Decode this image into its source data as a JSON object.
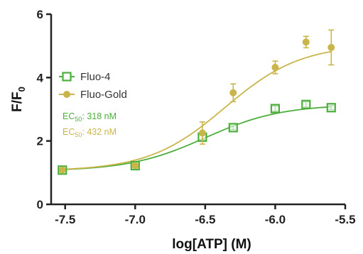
{
  "chart_data": {
    "type": "scatter",
    "xlabel": "log[ATP] (M)",
    "ylabel": "F/F",
    "ylabel_subscript": "0",
    "xlim": [
      -7.6,
      -5.5
    ],
    "ylim": [
      0,
      6
    ],
    "x_ticks": [
      -7.5,
      -7.0,
      -6.5,
      -6.0,
      -5.5
    ],
    "x_tick_labels": [
      "-7.5",
      "-7.0",
      "-6.5",
      "-6.0",
      "-5.5"
    ],
    "y_ticks": [
      0,
      2,
      4,
      6
    ],
    "y_tick_labels": [
      "0",
      "2",
      "4",
      "6"
    ],
    "grid": false,
    "legend_position": "upper-left",
    "series": [
      {
        "name": "Fluo-4",
        "color": "#4caf3c",
        "marker": "open-square",
        "x": [
          -7.52,
          -7.0,
          -6.52,
          -6.3,
          -6.0,
          -5.78,
          -5.6
        ],
        "y": [
          1.08,
          1.22,
          2.12,
          2.42,
          3.02,
          3.15,
          3.05
        ],
        "err": [
          0.05,
          0.05,
          0.08,
          0.06,
          0.08,
          0.08,
          0.06
        ],
        "fit": {
          "bottom": 1.05,
          "top": 3.15,
          "log_ec50": -6.5,
          "hill": 1.6
        }
      },
      {
        "name": "Fluo-Gold",
        "color": "#c9b54a",
        "marker": "filled-circle",
        "x": [
          -7.52,
          -7.0,
          -6.52,
          -6.3,
          -6.0,
          -5.78,
          -5.6
        ],
        "y": [
          1.08,
          1.22,
          2.25,
          3.52,
          4.32,
          5.12,
          4.95
        ],
        "err": [
          0.05,
          0.06,
          0.35,
          0.28,
          0.2,
          0.18,
          0.55
        ],
        "fit": {
          "bottom": 1.05,
          "top": 5.05,
          "log_ec50": -6.36,
          "hill": 1.6
        }
      }
    ],
    "annotations": [
      {
        "prefix": "EC",
        "subscript": "50",
        "text": ": 318 nM",
        "color": "#4caf3c"
      },
      {
        "prefix": "EC",
        "subscript": "50",
        "text": ": 432 nM",
        "color": "#c9b54a"
      }
    ]
  }
}
